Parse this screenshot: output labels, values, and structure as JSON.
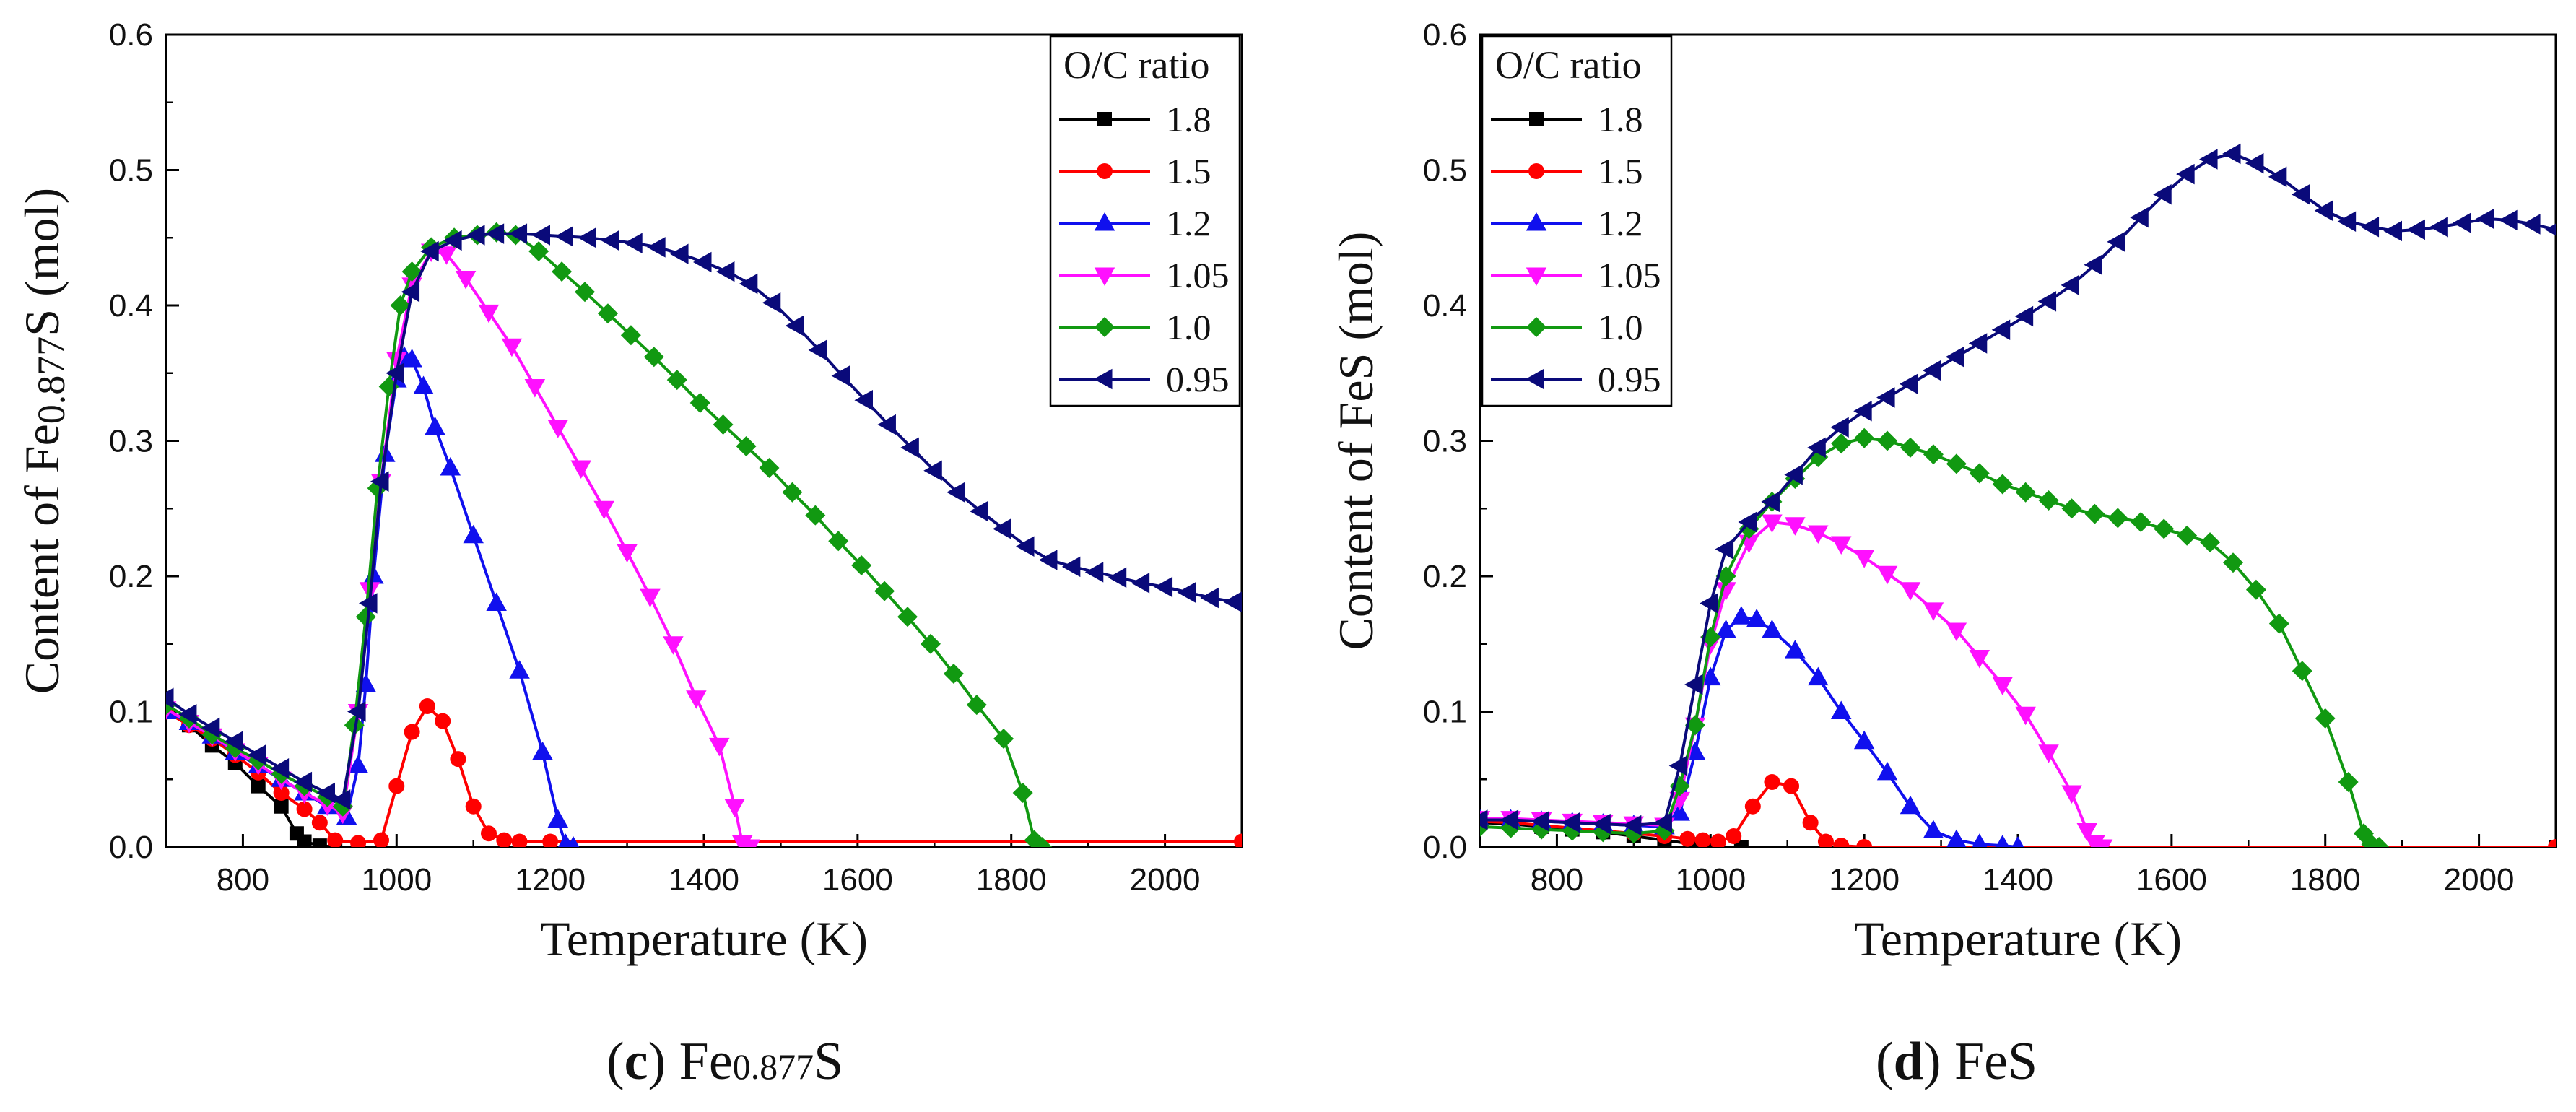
{
  "chart_data": [
    {
      "type": "line",
      "panel_label": "c",
      "caption_prefix": "Fe",
      "caption_subscript": "0.877",
      "caption_suffix": "S",
      "ylabel_prefix": "Content of Fe",
      "ylabel_subscript": "0.877",
      "ylabel_suffix": "S (mol)",
      "xlabel": "Temperature (K)",
      "xlim": [
        700,
        2100
      ],
      "ylim": [
        0,
        0.6
      ],
      "xticks": [
        800,
        1000,
        1200,
        1400,
        1600,
        1800,
        2000
      ],
      "yticks": [
        0.0,
        0.1,
        0.2,
        0.3,
        0.4,
        0.5,
        0.6
      ],
      "legend_title": "O/C ratio",
      "legend_position": "top-right",
      "series": [
        {
          "name": "1.8",
          "color": "#000000",
          "marker": "square",
          "x": [
            700,
            730,
            760,
            790,
            820,
            850,
            870,
            880,
            900,
            920,
            2100
          ],
          "y": [
            0.1,
            0.09,
            0.075,
            0.062,
            0.045,
            0.03,
            0.01,
            0.004,
            0.001,
            0.0,
            0.0
          ]
        },
        {
          "name": "1.5",
          "color": "#ff0000",
          "marker": "circle",
          "x": [
            700,
            730,
            760,
            790,
            820,
            850,
            880,
            900,
            920,
            950,
            980,
            1000,
            1020,
            1040,
            1060,
            1080,
            1100,
            1120,
            1140,
            1160,
            1200,
            2100
          ],
          "y": [
            0.1,
            0.09,
            0.08,
            0.068,
            0.055,
            0.04,
            0.028,
            0.018,
            0.005,
            0.003,
            0.005,
            0.045,
            0.085,
            0.104,
            0.093,
            0.065,
            0.03,
            0.01,
            0.005,
            0.004,
            0.004,
            0.004
          ]
        },
        {
          "name": "1.2",
          "color": "#1010ee",
          "marker": "triangle-up",
          "x": [
            700,
            730,
            760,
            790,
            820,
            850,
            880,
            910,
            935,
            950,
            960,
            970,
            985,
            1000,
            1010,
            1020,
            1035,
            1050,
            1070,
            1100,
            1130,
            1160,
            1190,
            1210,
            1220,
            1230
          ],
          "y": [
            0.1,
            0.092,
            0.082,
            0.07,
            0.06,
            0.05,
            0.04,
            0.03,
            0.022,
            0.06,
            0.12,
            0.2,
            0.29,
            0.345,
            0.362,
            0.36,
            0.34,
            0.31,
            0.28,
            0.23,
            0.18,
            0.13,
            0.07,
            0.02,
            0.002,
            0.0
          ]
        },
        {
          "name": "1.05",
          "color": "#ff10ff",
          "marker": "triangle-down",
          "x": [
            700,
            730,
            760,
            790,
            820,
            850,
            880,
            910,
            930,
            950,
            965,
            980,
            1000,
            1020,
            1045,
            1065,
            1090,
            1120,
            1150,
            1180,
            1210,
            1240,
            1270,
            1300,
            1330,
            1360,
            1390,
            1420,
            1440,
            1450,
            1460
          ],
          "y": [
            0.102,
            0.092,
            0.082,
            0.071,
            0.061,
            0.05,
            0.04,
            0.031,
            0.025,
            0.1,
            0.19,
            0.27,
            0.36,
            0.415,
            0.44,
            0.438,
            0.42,
            0.395,
            0.37,
            0.34,
            0.31,
            0.28,
            0.25,
            0.218,
            0.185,
            0.15,
            0.11,
            0.075,
            0.03,
            0.003,
            0.0
          ]
        },
        {
          "name": "1.0",
          "color": "#119911",
          "marker": "diamond",
          "x": [
            700,
            730,
            760,
            790,
            820,
            850,
            880,
            910,
            930,
            945,
            960,
            975,
            990,
            1005,
            1020,
            1045,
            1075,
            1105,
            1130,
            1155,
            1185,
            1215,
            1245,
            1275,
            1305,
            1335,
            1365,
            1395,
            1425,
            1455,
            1485,
            1515,
            1545,
            1575,
            1605,
            1635,
            1665,
            1695,
            1725,
            1755,
            1790,
            1815,
            1830,
            1840
          ],
          "y": [
            0.105,
            0.095,
            0.083,
            0.073,
            0.064,
            0.054,
            0.045,
            0.037,
            0.03,
            0.09,
            0.17,
            0.265,
            0.34,
            0.4,
            0.425,
            0.443,
            0.45,
            0.452,
            0.454,
            0.452,
            0.44,
            0.425,
            0.41,
            0.394,
            0.378,
            0.362,
            0.345,
            0.328,
            0.312,
            0.296,
            0.28,
            0.262,
            0.245,
            0.226,
            0.208,
            0.189,
            0.17,
            0.15,
            0.128,
            0.105,
            0.08,
            0.04,
            0.005,
            0.0
          ]
        },
        {
          "name": "0.95",
          "color": "#0a0a7a",
          "marker": "triangle-left",
          "x": [
            700,
            730,
            760,
            790,
            820,
            850,
            880,
            910,
            930,
            950,
            965,
            980,
            1000,
            1020,
            1045,
            1075,
            1105,
            1130,
            1160,
            1190,
            1220,
            1250,
            1280,
            1310,
            1340,
            1370,
            1400,
            1430,
            1460,
            1490,
            1520,
            1550,
            1580,
            1610,
            1640,
            1670,
            1700,
            1730,
            1760,
            1790,
            1820,
            1850,
            1880,
            1910,
            1940,
            1970,
            2000,
            2030,
            2060,
            2090
          ],
          "y": [
            0.11,
            0.098,
            0.088,
            0.078,
            0.068,
            0.058,
            0.048,
            0.04,
            0.035,
            0.1,
            0.18,
            0.27,
            0.35,
            0.41,
            0.44,
            0.448,
            0.452,
            0.453,
            0.453,
            0.452,
            0.451,
            0.45,
            0.448,
            0.446,
            0.443,
            0.438,
            0.432,
            0.425,
            0.416,
            0.402,
            0.385,
            0.367,
            0.348,
            0.33,
            0.312,
            0.295,
            0.278,
            0.262,
            0.248,
            0.235,
            0.222,
            0.212,
            0.207,
            0.203,
            0.199,
            0.195,
            0.192,
            0.188,
            0.184,
            0.181
          ]
        }
      ]
    },
    {
      "type": "line",
      "panel_label": "d",
      "caption_prefix": "FeS",
      "caption_subscript": "",
      "caption_suffix": "",
      "ylabel_prefix": "Content of FeS (mol)",
      "ylabel_subscript": "",
      "ylabel_suffix": "",
      "xlabel": "Temperature (K)",
      "xlim": [
        700,
        2100
      ],
      "ylim": [
        0,
        0.6
      ],
      "xticks": [
        800,
        1000,
        1200,
        1400,
        1600,
        1800,
        2000
      ],
      "yticks": [
        0.0,
        0.1,
        0.2,
        0.3,
        0.4,
        0.5,
        0.6
      ],
      "legend_title": "O/C ratio",
      "legend_position": "top-left",
      "series": [
        {
          "name": "1.8",
          "color": "#000000",
          "marker": "square",
          "x": [
            700,
            740,
            780,
            820,
            860,
            900,
            940,
            980,
            1000,
            1040,
            2100
          ],
          "y": [
            0.018,
            0.017,
            0.015,
            0.013,
            0.011,
            0.008,
            0.005,
            0.002,
            0.0,
            0.0,
            0.0
          ]
        },
        {
          "name": "1.5",
          "color": "#ff0000",
          "marker": "circle",
          "x": [
            700,
            740,
            780,
            820,
            860,
            900,
            940,
            970,
            990,
            1010,
            1030,
            1055,
            1080,
            1105,
            1130,
            1150,
            1170,
            1200,
            2100
          ],
          "y": [
            0.019,
            0.018,
            0.016,
            0.014,
            0.012,
            0.01,
            0.008,
            0.006,
            0.005,
            0.004,
            0.008,
            0.03,
            0.048,
            0.045,
            0.018,
            0.004,
            0.001,
            0.0,
            0.0
          ]
        },
        {
          "name": "1.2",
          "color": "#1010ee",
          "marker": "triangle-up",
          "x": [
            700,
            740,
            780,
            820,
            860,
            900,
            940,
            960,
            980,
            1000,
            1020,
            1040,
            1060,
            1080,
            1110,
            1140,
            1170,
            1200,
            1230,
            1260,
            1290,
            1320,
            1350,
            1380,
            1400
          ],
          "y": [
            0.02,
            0.02,
            0.019,
            0.018,
            0.017,
            0.016,
            0.015,
            0.025,
            0.07,
            0.125,
            0.16,
            0.17,
            0.168,
            0.16,
            0.145,
            0.125,
            0.1,
            0.078,
            0.055,
            0.03,
            0.012,
            0.005,
            0.002,
            0.001,
            0.0
          ]
        },
        {
          "name": "1.05",
          "color": "#ff10ff",
          "marker": "triangle-down",
          "x": [
            700,
            740,
            780,
            820,
            860,
            900,
            940,
            960,
            980,
            1000,
            1020,
            1050,
            1080,
            1110,
            1140,
            1170,
            1200,
            1230,
            1260,
            1290,
            1320,
            1350,
            1380,
            1410,
            1440,
            1470,
            1490,
            1500,
            1510
          ],
          "y": [
            0.021,
            0.021,
            0.02,
            0.019,
            0.018,
            0.017,
            0.016,
            0.035,
            0.09,
            0.15,
            0.19,
            0.225,
            0.24,
            0.238,
            0.232,
            0.224,
            0.214,
            0.202,
            0.19,
            0.175,
            0.16,
            0.14,
            0.12,
            0.098,
            0.07,
            0.04,
            0.012,
            0.003,
            0.0
          ]
        },
        {
          "name": "1.0",
          "color": "#119911",
          "marker": "diamond",
          "x": [
            700,
            740,
            780,
            820,
            860,
            900,
            940,
            960,
            980,
            1000,
            1020,
            1050,
            1080,
            1110,
            1140,
            1170,
            1200,
            1230,
            1260,
            1290,
            1320,
            1350,
            1380,
            1410,
            1440,
            1470,
            1500,
            1530,
            1560,
            1590,
            1620,
            1650,
            1680,
            1710,
            1740,
            1770,
            1800,
            1830,
            1850,
            1860,
            1870
          ],
          "y": [
            0.015,
            0.014,
            0.013,
            0.012,
            0.011,
            0.01,
            0.012,
            0.045,
            0.09,
            0.155,
            0.2,
            0.235,
            0.255,
            0.272,
            0.288,
            0.298,
            0.302,
            0.3,
            0.295,
            0.29,
            0.283,
            0.276,
            0.268,
            0.262,
            0.256,
            0.25,
            0.246,
            0.243,
            0.24,
            0.235,
            0.23,
            0.225,
            0.21,
            0.19,
            0.165,
            0.13,
            0.095,
            0.048,
            0.01,
            0.002,
            0.0
          ]
        },
        {
          "name": "0.95",
          "color": "#0a0a7a",
          "marker": "triangle-left",
          "x": [
            700,
            740,
            780,
            820,
            860,
            900,
            940,
            960,
            980,
            1000,
            1020,
            1050,
            1080,
            1110,
            1140,
            1170,
            1200,
            1230,
            1260,
            1290,
            1320,
            1350,
            1380,
            1410,
            1440,
            1470,
            1500,
            1530,
            1560,
            1590,
            1620,
            1650,
            1680,
            1710,
            1740,
            1770,
            1800,
            1830,
            1860,
            1890,
            1920,
            1950,
            1980,
            2010,
            2040,
            2070,
            2100
          ],
          "y": [
            0.02,
            0.02,
            0.019,
            0.018,
            0.017,
            0.016,
            0.018,
            0.06,
            0.12,
            0.18,
            0.22,
            0.24,
            0.255,
            0.275,
            0.295,
            0.31,
            0.322,
            0.332,
            0.342,
            0.352,
            0.362,
            0.372,
            0.382,
            0.392,
            0.403,
            0.415,
            0.43,
            0.447,
            0.465,
            0.482,
            0.497,
            0.508,
            0.512,
            0.505,
            0.495,
            0.482,
            0.47,
            0.462,
            0.458,
            0.455,
            0.456,
            0.458,
            0.461,
            0.464,
            0.463,
            0.46,
            0.456
          ]
        }
      ]
    }
  ]
}
